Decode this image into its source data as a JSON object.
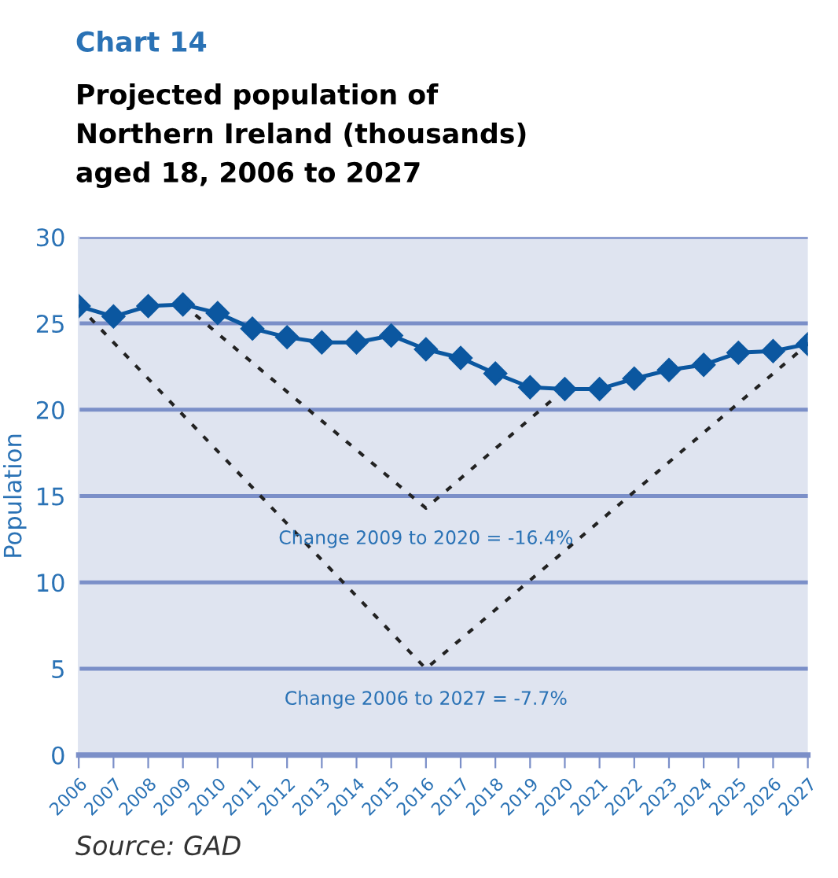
{
  "chart_data": {
    "type": "line",
    "title": "Projected population of\nNorthern Ireland (thousands)\naged 18, 2006 to 2027",
    "ylabel": "Population",
    "x": [
      2006,
      2007,
      2008,
      2009,
      2010,
      2011,
      2012,
      2013,
      2014,
      2015,
      2016,
      2017,
      2018,
      2019,
      2020,
      2021,
      2022,
      2023,
      2024,
      2025,
      2026,
      2027
    ],
    "series": [
      {
        "color": "#0b57a0",
        "marker": "diamond",
        "line_style": "solid",
        "values": [
          26.0,
          25.4,
          26.0,
          26.1,
          25.6,
          24.7,
          24.2,
          23.9,
          23.9,
          24.3,
          23.5,
          23.0,
          22.1,
          21.3,
          21.2,
          21.2,
          21.8,
          22.3,
          22.6,
          23.3,
          23.4,
          23.8
        ]
      },
      {
        "color": "#222222",
        "marker": "none",
        "line_style": "dotted",
        "x": [
          2006,
          2016,
          2027
        ],
        "values": [
          26.0,
          5.0,
          23.8
        ]
      },
      {
        "color": "#222222",
        "marker": "none",
        "line_style": "dotted",
        "x": [
          2009,
          2016,
          2020
        ],
        "values": [
          26.1,
          14.3,
          21.2
        ]
      }
    ],
    "xlim": [
      2006,
      2027
    ],
    "xticks": [
      2006,
      2007,
      2008,
      2009,
      2010,
      2011,
      2012,
      2013,
      2014,
      2015,
      2016,
      2017,
      2018,
      2019,
      2020,
      2021,
      2022,
      2023,
      2024,
      2025,
      2026,
      2027
    ],
    "ylim": [
      0,
      30
    ],
    "yticks": [
      0,
      5,
      10,
      15,
      20,
      25,
      30
    ],
    "grid": "y",
    "annotations": [
      "Chart 14",
      {
        "text": "Change 2009 to 2020 = -16.4%",
        "x": 2016,
        "y": 14.3
      },
      {
        "text": "Change 2006 to 2027 = -7.7%",
        "x": 2016,
        "y": 5.0
      },
      "Source: GAD"
    ]
  }
}
